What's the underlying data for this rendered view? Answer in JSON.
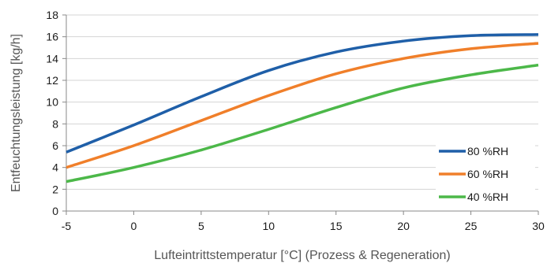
{
  "chart_data": {
    "type": "line",
    "title": "",
    "xlabel": "Lufteintrittstemperatur [°C] (Prozess & Regeneration)",
    "ylabel": "Entfeuchtungsleistung [kg/h]",
    "x": [
      -5,
      0,
      5,
      10,
      15,
      20,
      25,
      30
    ],
    "xlim": [
      -5,
      30
    ],
    "ylim": [
      0,
      18
    ],
    "xticks": [
      -5,
      0,
      5,
      10,
      15,
      20,
      25,
      30
    ],
    "yticks": [
      0,
      2,
      4,
      6,
      8,
      10,
      12,
      14,
      16,
      18
    ],
    "grid": "horizontal",
    "legend_position": "bottom-right",
    "series": [
      {
        "name": "80 %RH",
        "color": "#1f5fa8",
        "values": [
          5.4,
          7.9,
          10.5,
          12.9,
          14.6,
          15.6,
          16.1,
          16.2
        ]
      },
      {
        "name": "60 %RH",
        "color": "#f07f2a",
        "values": [
          4.0,
          6.0,
          8.3,
          10.6,
          12.6,
          14.0,
          14.9,
          15.4
        ]
      },
      {
        "name": "40 %RH",
        "color": "#4cb849",
        "values": [
          2.7,
          4.0,
          5.6,
          7.5,
          9.5,
          11.3,
          12.5,
          13.4
        ]
      }
    ]
  }
}
